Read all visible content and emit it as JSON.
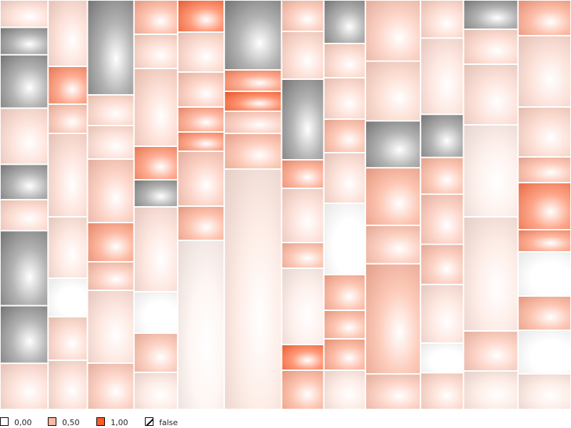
{
  "chart_data": {
    "type": "treemap",
    "color_scale": {
      "min": 0.0,
      "mid": 0.5,
      "max": 1.0,
      "min_color": "#ffffff",
      "mid_color": "#fbb8a2",
      "max_color": "#ff5a26",
      "missing_color": "#8a8a8a"
    },
    "legend": [
      {
        "label": "0,00",
        "kind": "swatch",
        "color": "#ffffff"
      },
      {
        "label": "0,50",
        "kind": "swatch",
        "color": "#fbb8a2"
      },
      {
        "label": "1,00",
        "kind": "swatch",
        "color": "#ff5a26"
      },
      {
        "label": "false",
        "kind": "hatch"
      }
    ],
    "columns": [
      {
        "width": 67,
        "cells": [
          {
            "size": 38,
            "value": 0.3
          },
          {
            "size": 38,
            "value": null
          },
          {
            "size": 74,
            "value": null
          },
          {
            "size": 78,
            "value": 0.3
          },
          {
            "size": 49,
            "value": null
          },
          {
            "size": 43,
            "value": 0.35
          },
          {
            "size": 104,
            "value": null
          },
          {
            "size": 80,
            "value": null
          },
          {
            "size": 64,
            "value": 0.3
          }
        ]
      },
      {
        "width": 55,
        "cells": [
          {
            "size": 93,
            "value": 0.3
          },
          {
            "size": 53,
            "value": 0.8
          },
          {
            "size": 41,
            "value": 0.5
          },
          {
            "size": 117,
            "value": 0.3
          },
          {
            "size": 86,
            "value": 0.25
          },
          {
            "size": 54,
            "value": 0.0
          },
          {
            "size": 61,
            "value": 0.35
          },
          {
            "size": 69,
            "value": 0.3
          }
        ]
      },
      {
        "width": 65,
        "cells": [
          {
            "size": 133,
            "value": null
          },
          {
            "size": 43,
            "value": 0.35
          },
          {
            "size": 47,
            "value": 0.3
          },
          {
            "size": 89,
            "value": 0.45
          },
          {
            "size": 55,
            "value": 0.7
          },
          {
            "size": 40,
            "value": 0.5
          },
          {
            "size": 102,
            "value": 0.25
          },
          {
            "size": 65,
            "value": 0.45
          }
        ]
      },
      {
        "width": 61,
        "cells": [
          {
            "size": 48,
            "value": 0.6
          },
          {
            "size": 48,
            "value": 0.35
          },
          {
            "size": 109,
            "value": 0.35
          },
          {
            "size": 47,
            "value": 0.8
          },
          {
            "size": 38,
            "value": null
          },
          {
            "size": 119,
            "value": 0.25
          },
          {
            "size": 58,
            "value": 0.0
          },
          {
            "size": 55,
            "value": 0.5
          },
          {
            "size": 52,
            "value": 0.2
          }
        ]
      },
      {
        "width": 65,
        "cells": [
          {
            "size": 45,
            "value": 0.95
          },
          {
            "size": 56,
            "value": 0.35
          },
          {
            "size": 49,
            "value": 0.45
          },
          {
            "size": 35,
            "value": 0.7
          },
          {
            "size": 27,
            "value": 0.8
          },
          {
            "size": 77,
            "value": 0.45
          },
          {
            "size": 48,
            "value": 0.6
          },
          {
            "size": 237,
            "value": 0.1
          }
        ]
      },
      {
        "width": 80,
        "cells": [
          {
            "size": 98,
            "value": null
          },
          {
            "size": 30,
            "value": 0.8
          },
          {
            "size": 28,
            "value": 1.0
          },
          {
            "size": 31,
            "value": 0.45
          },
          {
            "size": 50,
            "value": 0.55
          },
          {
            "size": 337,
            "value": 0.2
          }
        ]
      },
      {
        "width": 59,
        "cells": [
          {
            "size": 44,
            "value": 0.5
          },
          {
            "size": 67,
            "value": 0.35
          },
          {
            "size": 113,
            "value": null
          },
          {
            "size": 40,
            "value": 0.7
          },
          {
            "size": 76,
            "value": 0.3
          },
          {
            "size": 36,
            "value": 0.55
          },
          {
            "size": 107,
            "value": 0.15
          },
          {
            "size": 36,
            "value": 0.95
          },
          {
            "size": 55,
            "value": 0.6
          }
        ]
      },
      {
        "width": 58,
        "cells": [
          {
            "size": 61,
            "value": null
          },
          {
            "size": 48,
            "value": 0.35
          },
          {
            "size": 58,
            "value": 0.35
          },
          {
            "size": 47,
            "value": 0.55
          },
          {
            "size": 71,
            "value": 0.3
          },
          {
            "size": 100,
            "value": 0.0
          },
          {
            "size": 50,
            "value": 0.6
          },
          {
            "size": 40,
            "value": 0.6
          },
          {
            "size": 44,
            "value": 0.65
          },
          {
            "size": 55,
            "value": 0.2
          }
        ]
      },
      {
        "width": 77,
        "cells": [
          {
            "size": 86,
            "value": 0.45
          },
          {
            "size": 84,
            "value": 0.35
          },
          {
            "size": 66,
            "value": null
          },
          {
            "size": 81,
            "value": 0.6
          },
          {
            "size": 54,
            "value": 0.5
          },
          {
            "size": 155,
            "value": 0.55
          },
          {
            "size": 50,
            "value": 0.45
          }
        ]
      },
      {
        "width": 60,
        "cells": [
          {
            "size": 54,
            "value": 0.35
          },
          {
            "size": 108,
            "value": 0.25
          },
          {
            "size": 61,
            "value": null
          },
          {
            "size": 52,
            "value": 0.55
          },
          {
            "size": 71,
            "value": 0.45
          },
          {
            "size": 57,
            "value": 0.5
          },
          {
            "size": 83,
            "value": 0.25
          },
          {
            "size": 42,
            "value": 0.0
          },
          {
            "size": 52,
            "value": 0.35
          }
        ]
      },
      {
        "width": 76,
        "cells": [
          {
            "size": 41,
            "value": null
          },
          {
            "size": 49,
            "value": 0.35
          },
          {
            "size": 85,
            "value": 0.3
          },
          {
            "size": 129,
            "value": 0.15
          },
          {
            "size": 160,
            "value": 0.2
          },
          {
            "size": 56,
            "value": 0.45
          },
          {
            "size": 54,
            "value": 0.2
          }
        ]
      },
      {
        "width": 74,
        "cells": [
          {
            "size": 50,
            "value": 0.65
          },
          {
            "size": 100,
            "value": 0.3
          },
          {
            "size": 70,
            "value": 0.35
          },
          {
            "size": 36,
            "value": 0.55
          },
          {
            "size": 66,
            "value": 0.85
          },
          {
            "size": 31,
            "value": 0.75
          },
          {
            "size": 62,
            "value": 0.0
          },
          {
            "size": 48,
            "value": 0.6
          },
          {
            "size": 61,
            "value": 0.0
          },
          {
            "size": 50,
            "value": 0.2
          }
        ]
      }
    ]
  }
}
